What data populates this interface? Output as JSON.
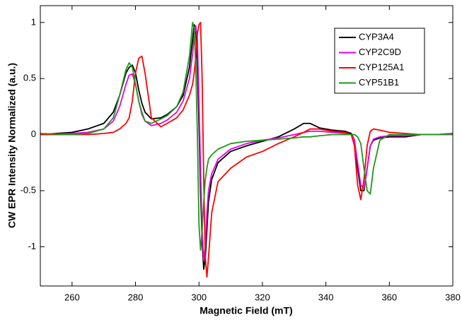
{
  "chart_data": {
    "type": "line",
    "x_label": "Magnetic Field (mT)",
    "y_label": "CW EPR Intensity Normalized (a.u.)",
    "x": [
      250,
      260,
      265,
      270,
      273,
      275,
      277,
      278,
      279,
      280,
      281,
      282,
      283,
      285,
      288,
      290,
      293,
      295,
      297,
      298,
      298.5,
      299,
      299.5,
      300,
      300.5,
      301,
      301.5,
      302,
      302.5,
      303,
      304,
      306,
      310,
      315,
      320,
      325,
      330,
      333,
      335,
      338,
      342,
      346,
      348,
      349,
      350,
      351,
      352,
      353,
      354,
      355,
      357,
      360,
      365,
      370,
      375,
      380
    ],
    "series": [
      {
        "name": "CYP3A4",
        "color": "#000000",
        "values": [
          0,
          0.02,
          0.05,
          0.1,
          0.2,
          0.35,
          0.55,
          0.6,
          0.62,
          0.55,
          0.4,
          0.28,
          0.2,
          0.14,
          0.15,
          0.18,
          0.25,
          0.35,
          0.6,
          0.85,
          0.98,
          0.95,
          0.6,
          0.1,
          -0.5,
          -0.95,
          -1.2,
          -1.1,
          -0.85,
          -0.6,
          -0.4,
          -0.25,
          -0.15,
          -0.1,
          -0.06,
          -0.02,
          0.05,
          0.1,
          0.1,
          0.06,
          0.04,
          0.03,
          0.01,
          -0.05,
          -0.3,
          -0.5,
          -0.5,
          -0.3,
          -0.1,
          -0.05,
          -0.03,
          -0.02,
          -0.02,
          0,
          0,
          0.01
        ]
      },
      {
        "name": "CYP2C9D",
        "color": "#e600e6",
        "values": [
          0,
          0.01,
          0.02,
          0.05,
          0.12,
          0.25,
          0.45,
          0.53,
          0.54,
          0.45,
          0.3,
          0.18,
          0.12,
          0.08,
          0.1,
          0.13,
          0.2,
          0.3,
          0.5,
          0.72,
          0.88,
          0.97,
          0.85,
          0.3,
          -0.3,
          -0.85,
          -1.12,
          -1.0,
          -0.7,
          -0.5,
          -0.35,
          -0.22,
          -0.13,
          -0.08,
          -0.05,
          -0.03,
          0,
          0.02,
          0.03,
          0.03,
          0.02,
          0.01,
          0,
          -0.05,
          -0.25,
          -0.45,
          -0.48,
          -0.3,
          -0.1,
          -0.04,
          -0.02,
          -0.01,
          -0.01,
          0,
          0,
          0.01
        ]
      },
      {
        "name": "CYP125A1",
        "color": "#ff0000",
        "values": [
          0,
          0,
          0,
          0.01,
          0.02,
          0.05,
          0.1,
          0.15,
          0.3,
          0.55,
          0.68,
          0.7,
          0.55,
          0.15,
          0.07,
          0.1,
          0.15,
          0.22,
          0.35,
          0.45,
          0.55,
          0.7,
          0.9,
          0.98,
          1.0,
          0.5,
          -0.4,
          -1.1,
          -1.27,
          -1.1,
          -0.7,
          -0.42,
          -0.3,
          -0.2,
          -0.15,
          -0.08,
          -0.02,
          0.02,
          0.05,
          0.05,
          0.03,
          0.02,
          0,
          -0.1,
          -0.45,
          -0.58,
          -0.4,
          -0.1,
          0.03,
          0.05,
          0.04,
          0.02,
          0.01,
          0,
          0,
          0
        ]
      },
      {
        "name": "CYP51B1",
        "color": "#1a9a1a",
        "values": [
          0.01,
          0,
          0.01,
          0.05,
          0.15,
          0.35,
          0.58,
          0.64,
          0.6,
          0.45,
          0.3,
          0.2,
          0.12,
          0.1,
          0.14,
          0.17,
          0.25,
          0.38,
          0.7,
          1.0,
          0.95,
          0.6,
          0,
          -0.8,
          -1.03,
          -0.85,
          -0.6,
          -0.4,
          -0.3,
          -0.22,
          -0.18,
          -0.13,
          -0.08,
          -0.06,
          -0.05,
          -0.04,
          -0.03,
          -0.02,
          -0.02,
          -0.01,
          0,
          0,
          0,
          0,
          -0.02,
          -0.08,
          -0.3,
          -0.5,
          -0.53,
          -0.3,
          -0.05,
          0,
          0,
          0,
          0,
          0
        ]
      }
    ],
    "xlim": [
      250,
      380
    ],
    "xticks": [
      260,
      280,
      300,
      320,
      340,
      360,
      380
    ],
    "ylim": [
      -1.35,
      1.15
    ],
    "yticks": [
      -1,
      -0.5,
      0,
      0.5,
      1
    ],
    "grid": false,
    "legend": "upper right"
  }
}
